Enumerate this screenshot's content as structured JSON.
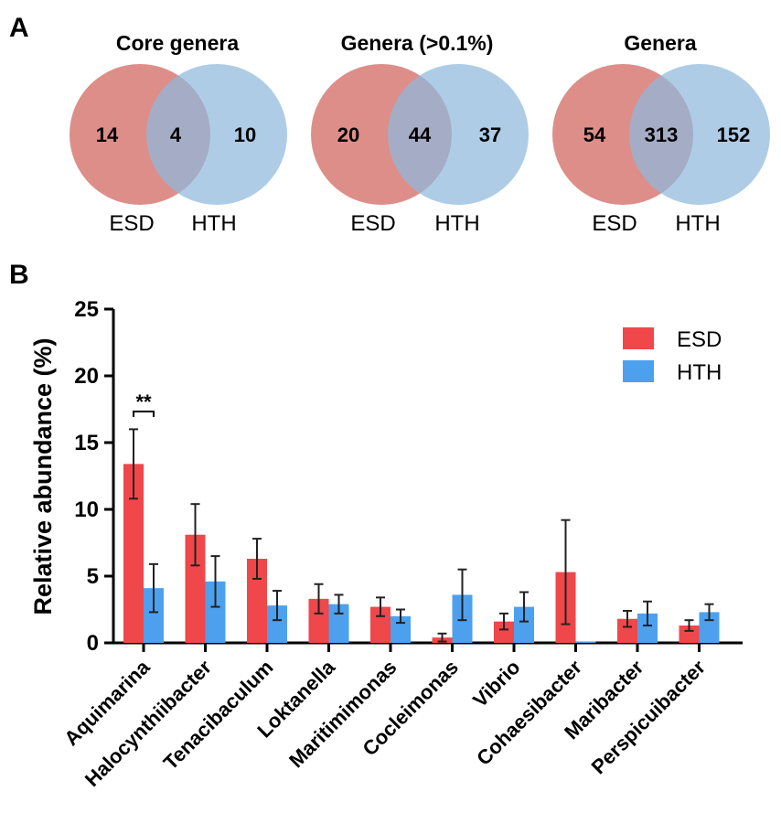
{
  "panel_a": {
    "label": "A",
    "venns": [
      {
        "title": "Core genera",
        "left_only": "14",
        "overlap": "4",
        "right_only": "10",
        "left_set": "ESD",
        "right_set": "HTH"
      },
      {
        "title": "Genera (>0.1%)",
        "left_only": "20",
        "overlap": "44",
        "right_only": "37",
        "left_set": "ESD",
        "right_set": "HTH"
      },
      {
        "title": "Genera",
        "left_only": "54",
        "overlap": "313",
        "right_only": "152",
        "left_set": "ESD",
        "right_set": "HTH"
      }
    ]
  },
  "panel_b": {
    "label": "B",
    "significance": "**"
  },
  "colors": {
    "esd_circle": "#d9827c",
    "hth_circle": "#8fb8dd",
    "overlap": "#8c7fa6",
    "esd_bar": "#f0474b",
    "hth_bar": "#4da0ee"
  },
  "chart_data": {
    "type": "bar",
    "title": "",
    "xlabel": "",
    "ylabel": "Relative abundance (%)",
    "ylim": [
      0,
      25
    ],
    "yticks": [
      0,
      5,
      10,
      15,
      20,
      25
    ],
    "grid": false,
    "legend_position": "top-right",
    "categories": [
      "Aquimarina",
      "Halocynthiibacter",
      "Tenacibaculum",
      "Loktanella",
      "Maritimimonas",
      "Cocleimonas",
      "Vibrio",
      "Cohaesibacter",
      "Maribacter",
      "Perspicuibacter"
    ],
    "series": [
      {
        "name": "ESD",
        "values": [
          13.4,
          8.1,
          6.3,
          3.3,
          2.7,
          0.4,
          1.6,
          5.3,
          1.8,
          1.3
        ],
        "errors": [
          2.6,
          2.3,
          1.5,
          1.1,
          0.7,
          0.3,
          0.6,
          3.9,
          0.6,
          0.4
        ]
      },
      {
        "name": "HTH",
        "values": [
          4.1,
          4.6,
          2.8,
          2.9,
          2.0,
          3.6,
          2.7,
          0.1,
          2.2,
          2.3
        ],
        "errors": [
          1.8,
          1.9,
          1.1,
          0.7,
          0.5,
          1.9,
          1.1,
          0.0,
          0.9,
          0.6
        ]
      }
    ]
  }
}
